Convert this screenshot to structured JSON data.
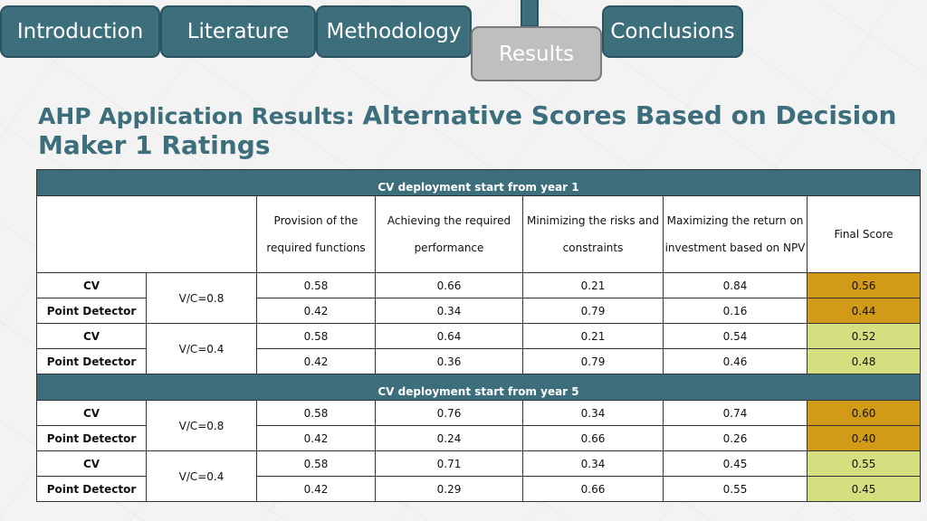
{
  "nav": {
    "tabs": [
      {
        "label": "Introduction"
      },
      {
        "label": "Literature"
      },
      {
        "label": "Methodology"
      },
      {
        "label": "Results"
      },
      {
        "label": "Conclusions"
      }
    ],
    "active": "Results"
  },
  "title": {
    "part1": "AHP Application Results: ",
    "part2": "Alternative Scores Based on Decision Maker 1 Ratings"
  },
  "table": {
    "headers": [
      "Provision of the required functions",
      "Achieving the required performance",
      "Minimizing the risks and constraints",
      "Maximizing the return on investment based on NPV",
      "Final Score"
    ],
    "sections": [
      {
        "label": "CV deployment start from year 1",
        "groups": [
          {
            "vc": "V/C=0.8",
            "rows": [
              {
                "alt": "CV",
                "values": [
                  "0.58",
                  "0.66",
                  "0.21",
                  "0.84"
                ],
                "final": "0.56"
              },
              {
                "alt": "Point Detector",
                "values": [
                  "0.42",
                  "0.34",
                  "0.79",
                  "0.16"
                ],
                "final": "0.44"
              }
            ]
          },
          {
            "vc": "V/C=0.4",
            "rows": [
              {
                "alt": "CV",
                "values": [
                  "0.58",
                  "0.64",
                  "0.21",
                  "0.54"
                ],
                "final": "0.52"
              },
              {
                "alt": "Point Detector",
                "values": [
                  "0.42",
                  "0.36",
                  "0.79",
                  "0.46"
                ],
                "final": "0.48"
              }
            ]
          }
        ]
      },
      {
        "label": "CV deployment start from year 5",
        "groups": [
          {
            "vc": "V/C=0.8",
            "rows": [
              {
                "alt": "CV",
                "values": [
                  "0.58",
                  "0.76",
                  "0.34",
                  "0.74"
                ],
                "final": "0.60"
              },
              {
                "alt": "Point Detector",
                "values": [
                  "0.42",
                  "0.24",
                  "0.66",
                  "0.26"
                ],
                "final": "0.40"
              }
            ]
          },
          {
            "vc": "V/C=0.4",
            "rows": [
              {
                "alt": "CV",
                "values": [
                  "0.58",
                  "0.71",
                  "0.34",
                  "0.45"
                ],
                "final": "0.55"
              },
              {
                "alt": "Point Detector",
                "values": [
                  "0.42",
                  "0.29",
                  "0.66",
                  "0.55"
                ],
                "final": "0.45"
              }
            ]
          }
        ]
      }
    ]
  },
  "colors": {
    "accent": "#3c6e7b",
    "score_high_vc": "#d19a17",
    "score_low_vc": "#d6df7f",
    "active_tab": "#bfbfbf"
  }
}
